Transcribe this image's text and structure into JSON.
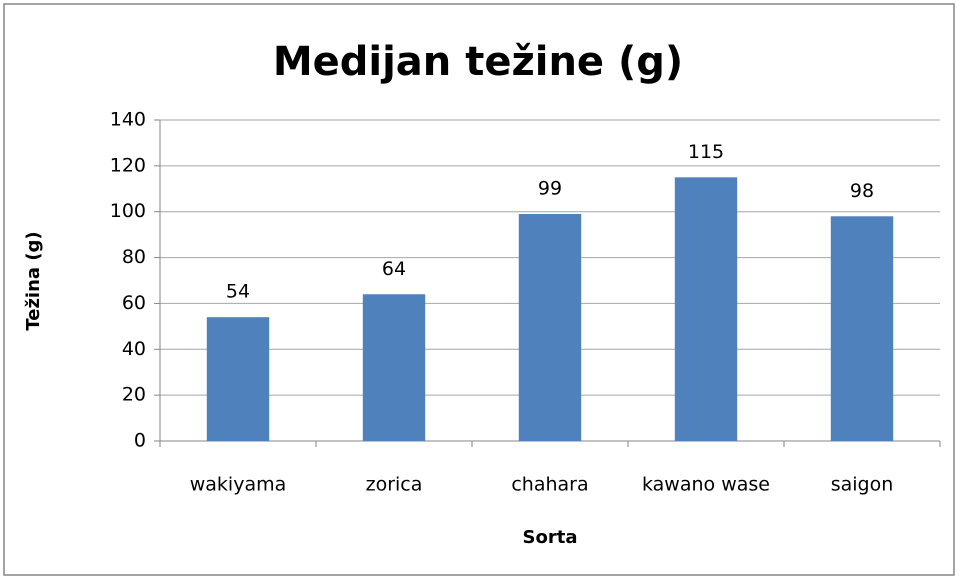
{
  "chart_data": {
    "type": "bar",
    "title": "Medijan težine (g)",
    "y_label": "Težina (g)",
    "x_label": "Sorta",
    "categories": [
      "wakiyama",
      "zorica",
      "chahara",
      "kawano wase",
      "saigon"
    ],
    "values": [
      54,
      64,
      99,
      115,
      98
    ],
    "color": "#4f81bd",
    "ylim": [
      0,
      140
    ],
    "yticks": [
      0,
      20,
      40,
      60,
      80,
      100,
      120,
      140
    ],
    "grid": true,
    "data_labels": true
  }
}
